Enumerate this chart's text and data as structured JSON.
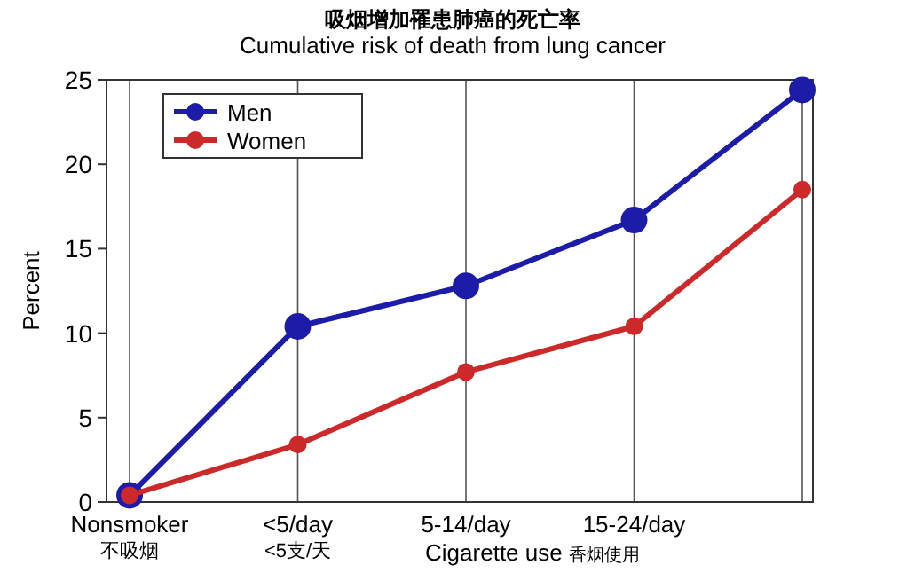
{
  "chart_data": {
    "type": "line",
    "title": "吸烟增加罹患肺癌的死亡率",
    "subtitle": "Cumulative risk of death from lung cancer",
    "xlabel": "Cigarette use 香烟使用",
    "ylabel": "Percent",
    "categories": [
      "Nonsmoker\n不吸烟",
      "<5/day\n<5支/天",
      "5-14/day",
      "15-24/day",
      null
    ],
    "series": [
      {
        "name": "Men",
        "color": "#1c1ca8",
        "values": [
          0.4,
          10.4,
          12.8,
          16.7,
          24.4
        ]
      },
      {
        "name": "Women",
        "color": "#cc2a2a",
        "values": [
          0.4,
          3.4,
          7.7,
          10.4,
          18.5
        ]
      }
    ],
    "ylim": [
      0,
      25
    ],
    "yticks": [
      0,
      5,
      10,
      15,
      20,
      25
    ],
    "grid": "x",
    "legend": "top left",
    "marker": "circle",
    "line_style": "solid"
  }
}
